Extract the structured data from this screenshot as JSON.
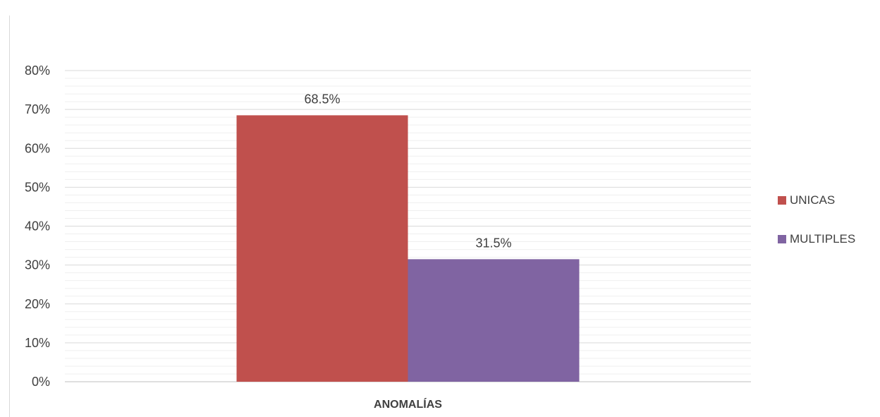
{
  "chart_data": {
    "type": "bar",
    "categories": [
      "ANOMALÍAS"
    ],
    "xlabel": "ANOMALÍAS",
    "ylabel": "",
    "ylim": [
      0,
      80
    ],
    "y_ticks": [
      "0%",
      "10%",
      "20%",
      "30%",
      "40%",
      "50%",
      "60%",
      "70%",
      "80%"
    ],
    "series": [
      {
        "name": "UNICAS",
        "values": [
          68.5
        ],
        "label": "68.5%",
        "color": "#c0504d"
      },
      {
        "name": "MULTIPLES",
        "values": [
          31.5
        ],
        "label": "31.5%",
        "color": "#8064a2"
      }
    ],
    "grid": true,
    "legend": "right"
  }
}
